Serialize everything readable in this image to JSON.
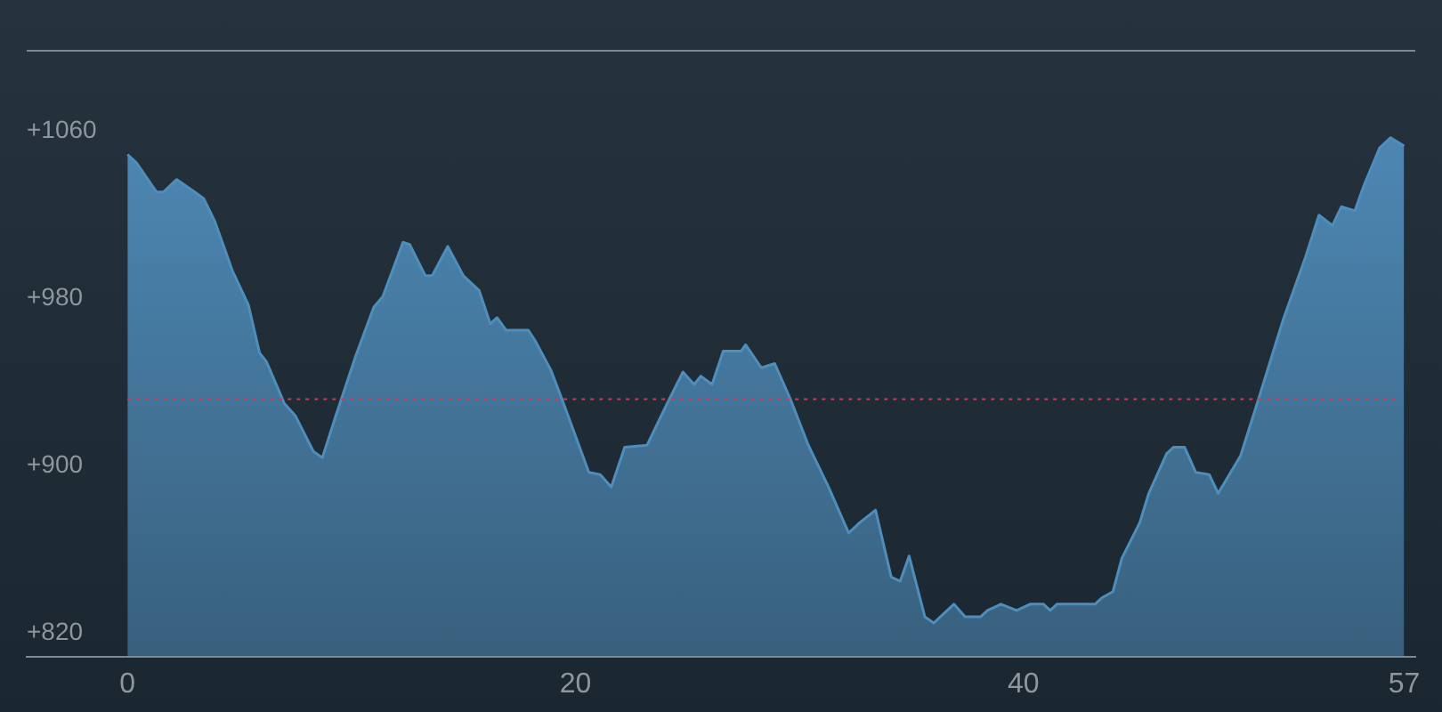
{
  "chart_data": {
    "type": "area",
    "x": [
      0,
      0.4,
      1.3,
      1.6,
      2.2,
      3.0,
      3.4,
      3.9,
      4.7,
      5.4,
      5.9,
      6.2,
      7.0,
      7.5,
      8.3,
      8.7,
      9.3,
      10.2,
      11.0,
      11.4,
      12.3,
      12.6,
      13.3,
      13.6,
      14.3,
      15.0,
      15.7,
      16.2,
      16.5,
      16.9,
      17.9,
      18.2,
      18.9,
      19.4,
      20.6,
      21.1,
      21.6,
      22.2,
      23.2,
      24.1,
      24.8,
      25.3,
      25.6,
      26.1,
      26.6,
      27.4,
      27.6,
      28.3,
      28.9,
      29.6,
      30.4,
      31.3,
      32.2,
      32.7,
      33.4,
      34.1,
      34.5,
      34.9,
      35.6,
      36.0,
      36.3,
      36.9,
      37.4,
      38.1,
      38.4,
      39.0,
      39.7,
      40.3,
      40.9,
      41.2,
      41.5,
      43.2,
      43.5,
      44.0,
      44.4,
      45.2,
      45.6,
      46.4,
      46.7,
      47.2,
      47.7,
      48.3,
      48.7,
      49.7,
      50.5,
      51.6,
      52.6,
      53.2,
      53.8,
      54.2,
      54.8,
      55.2,
      55.9,
      56.4,
      57.0
    ],
    "series": [
      {
        "color": "#4f8dbb",
        "values": [
          1049,
          1045,
          1031,
          1031,
          1037,
          1031,
          1028,
          1017,
          993,
          977,
          954,
          950,
          930,
          924,
          907,
          904,
          924,
          953,
          976,
          981,
          1007,
          1006,
          991,
          991,
          1005,
          991,
          984,
          968,
          971,
          965,
          965,
          960,
          946,
          932,
          897,
          896,
          890,
          909,
          910,
          930,
          945,
          939,
          943,
          939,
          955,
          955,
          958,
          947,
          949,
          932,
          910,
          890,
          868,
          873,
          879,
          847,
          845,
          857,
          828,
          825,
          828,
          834,
          828,
          828,
          831,
          834,
          831,
          834,
          834,
          831,
          834,
          834,
          837,
          840,
          856,
          873,
          887,
          906,
          909,
          909,
          897,
          896,
          887,
          905,
          932,
          970,
          1000,
          1020,
          1015,
          1024,
          1022,
          1034,
          1052,
          1057,
          1053
        ]
      }
    ],
    "xlim": [
      -4.5,
      57.5
    ],
    "xticks": [
      0,
      20,
      40,
      57
    ],
    "ylim": [
      809,
      1099
    ],
    "yticks": [
      {
        "value": 820,
        "label": "+820"
      },
      {
        "value": 900,
        "label": "+900"
      },
      {
        "value": 980,
        "label": "+980"
      },
      {
        "value": 1060,
        "label": "+1060"
      }
    ],
    "ref_lines": [
      {
        "axis": "y",
        "value": 932,
        "color": "#c0405e",
        "line_style": "dotted"
      }
    ],
    "grid": false,
    "legend": false,
    "marker": "none"
  }
}
